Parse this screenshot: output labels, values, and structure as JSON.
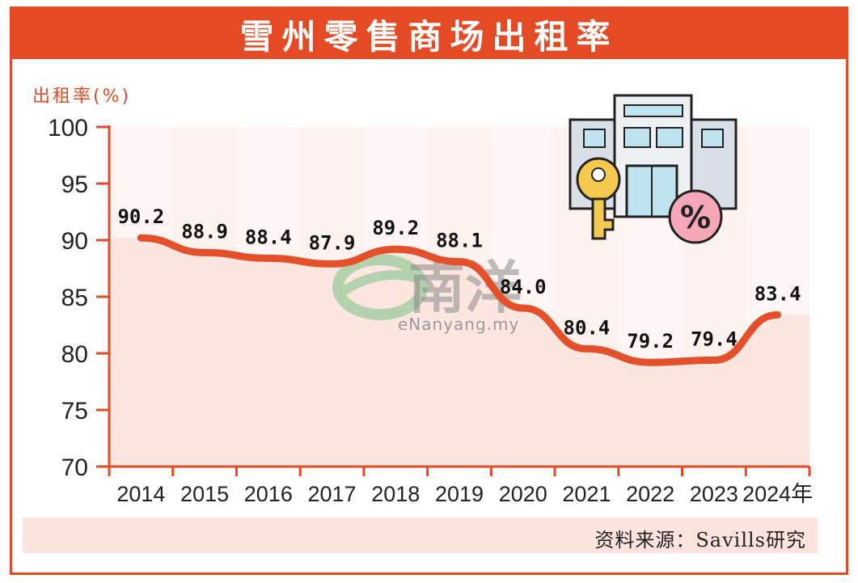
{
  "title": "雪州零售商场出租率",
  "source": "资料来源：Savills研究",
  "watermark": {
    "brand_cn": "南洋",
    "url": "eNanyang.my"
  },
  "icons": {
    "illustration": "building-key-percent-icon",
    "watermark": "enanyang-logo-icon"
  },
  "colors": {
    "accent": "#e44a24",
    "line": "#e4502a",
    "area": "#fde6e0",
    "area_alt": "#fbd9d1"
  },
  "chart_data": {
    "type": "line",
    "ylabel": "出租率(%)",
    "xlabel": "",
    "x_suffix": "年",
    "categories": [
      "2014",
      "2015",
      "2016",
      "2017",
      "2018",
      "2019",
      "2020",
      "2021",
      "2022",
      "2023",
      "2024"
    ],
    "values": [
      90.2,
      88.9,
      88.4,
      87.9,
      89.2,
      88.1,
      84.0,
      80.4,
      79.2,
      79.4,
      83.4
    ],
    "value_labels": [
      "90.2",
      "88.9",
      "88.4",
      "87.9",
      "89.2",
      "88.1",
      "84.0",
      "80.4",
      "79.2",
      "79.4",
      "83.4"
    ],
    "ylim": [
      70,
      100
    ],
    "yticks": [
      "100",
      "95",
      "90",
      "85",
      "80",
      "75",
      "70"
    ],
    "grid": false,
    "legend": "none"
  }
}
